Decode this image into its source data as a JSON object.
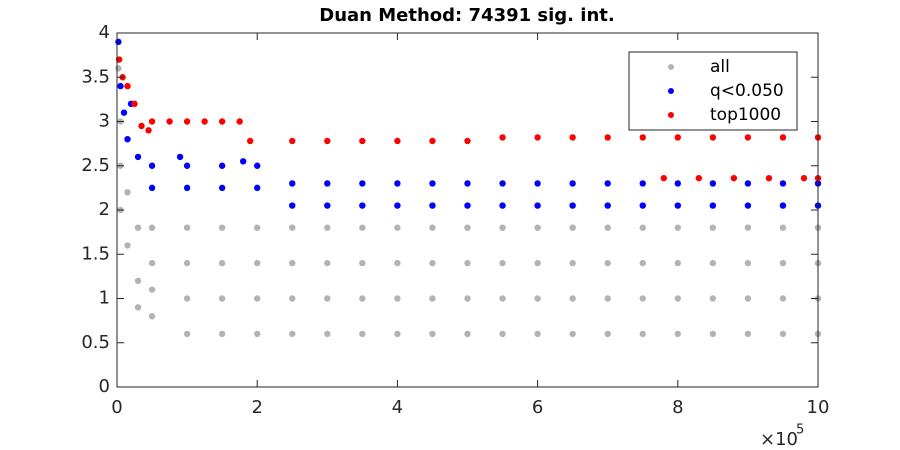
{
  "chart_data": {
    "type": "scatter",
    "title": "Duan Method: 74391 sig. int.",
    "x_multiplier": {
      "base": "×10",
      "exponent": "5"
    },
    "xlim": [
      0,
      10
    ],
    "ylim": [
      0,
      4
    ],
    "xticks": [
      0,
      2,
      4,
      6,
      8,
      10
    ],
    "yticks": [
      0,
      0.5,
      1,
      1.5,
      2,
      2.5,
      3,
      3.5,
      4
    ],
    "grid": false,
    "legend": "northeast",
    "series": [
      {
        "name": "all",
        "color": "#b3b3b3",
        "x": [
          0.02,
          0.05,
          0.05,
          0.05,
          0.15,
          0.15,
          0.3,
          0.3,
          0.3,
          0.5,
          0.5,
          0.5,
          0.5,
          1,
          1,
          1,
          1,
          1.5,
          1.5,
          1.5,
          1.5,
          2,
          2,
          2,
          2,
          2.5,
          2.5,
          2.5,
          2.5,
          3,
          3,
          3,
          3,
          3.5,
          3.5,
          3.5,
          3.5,
          4,
          4,
          4,
          4,
          4.5,
          4.5,
          4.5,
          4.5,
          5,
          5,
          5,
          5,
          5.5,
          5.5,
          5.5,
          5.5,
          6,
          6,
          6,
          6,
          6.5,
          6.5,
          6.5,
          6.5,
          7,
          7,
          7,
          7,
          7.5,
          7.5,
          7.5,
          7.5,
          8,
          8,
          8,
          8,
          8.5,
          8.5,
          8.5,
          8.5,
          9,
          9,
          9,
          9,
          9.5,
          9.5,
          9.5,
          9.5,
          10,
          10,
          10,
          10
        ],
        "y": [
          3.6,
          3.0,
          2.5,
          2.0,
          1.6,
          2.2,
          1.2,
          0.9,
          1.8,
          0.8,
          1.1,
          1.4,
          1.8,
          0.6,
          1,
          1.4,
          1.8,
          0.6,
          1,
          1.4,
          1.8,
          0.6,
          1,
          1.4,
          1.8,
          0.6,
          1,
          1.4,
          1.8,
          0.6,
          1,
          1.4,
          1.8,
          0.6,
          1,
          1.4,
          1.8,
          0.6,
          1,
          1.4,
          1.8,
          0.6,
          1,
          1.4,
          1.8,
          0.6,
          1,
          1.4,
          1.8,
          0.6,
          1,
          1.4,
          1.8,
          0.6,
          1,
          1.4,
          1.8,
          0.6,
          1,
          1.4,
          1.8,
          0.6,
          1,
          1.4,
          1.8,
          0.6,
          1,
          1.4,
          1.8,
          0.6,
          1,
          1.4,
          1.8,
          0.6,
          1,
          1.4,
          1.8,
          0.6,
          1,
          1.4,
          1.8,
          0.6,
          1,
          1.4,
          1.8,
          0.6,
          1,
          1.4,
          1.8
        ]
      },
      {
        "name": "q<0.050",
        "color": "#0000ff",
        "x": [
          0.02,
          0.05,
          0.1,
          0.15,
          0.2,
          0.3,
          0.9,
          1.8,
          0.5,
          0.5,
          1,
          1,
          1.5,
          1.5,
          2,
          2,
          2.5,
          2.5,
          3,
          3,
          3.5,
          3.5,
          4,
          4,
          4.5,
          4.5,
          5,
          5,
          5.5,
          5.5,
          6,
          6,
          6.5,
          6.5,
          7,
          7,
          7.5,
          7.5,
          8,
          8,
          8.5,
          8.5,
          9,
          9,
          9.5,
          9.5,
          10,
          10
        ],
        "y": [
          3.9,
          3.4,
          3.1,
          2.8,
          3.2,
          2.6,
          2.6,
          2.55,
          2.25,
          2.5,
          2.25,
          2.5,
          2.25,
          2.5,
          2.25,
          2.5,
          2.05,
          2.3,
          2.05,
          2.3,
          2.05,
          2.3,
          2.05,
          2.3,
          2.05,
          2.3,
          2.05,
          2.3,
          2.05,
          2.3,
          2.05,
          2.3,
          2.05,
          2.3,
          2.05,
          2.3,
          2.05,
          2.3,
          2.05,
          2.3,
          2.05,
          2.3,
          2.05,
          2.3,
          2.05,
          2.3,
          2.05,
          2.3
        ]
      },
      {
        "name": "top1000",
        "color": "#ff0000",
        "x": [
          0.03,
          0.08,
          0.15,
          0.25,
          0.35,
          0.45,
          0.5,
          0.75,
          1,
          1.25,
          1.5,
          1.75,
          1.9,
          2.5,
          3,
          3.5,
          4,
          4.5,
          5,
          5.5,
          6,
          6.5,
          7,
          7.5,
          8,
          8.5,
          9,
          9.5,
          10,
          7.8,
          8.3,
          8.8,
          9.3,
          9.8,
          10
        ],
        "y": [
          3.7,
          3.5,
          3.4,
          3.2,
          2.95,
          2.9,
          3.0,
          3.0,
          3.0,
          3.0,
          3.0,
          3.0,
          2.78,
          2.78,
          2.78,
          2.78,
          2.78,
          2.78,
          2.78,
          2.82,
          2.82,
          2.82,
          2.82,
          2.82,
          2.82,
          2.82,
          2.82,
          2.82,
          2.82,
          2.36,
          2.36,
          2.36,
          2.36,
          2.36,
          2.36
        ]
      }
    ]
  }
}
